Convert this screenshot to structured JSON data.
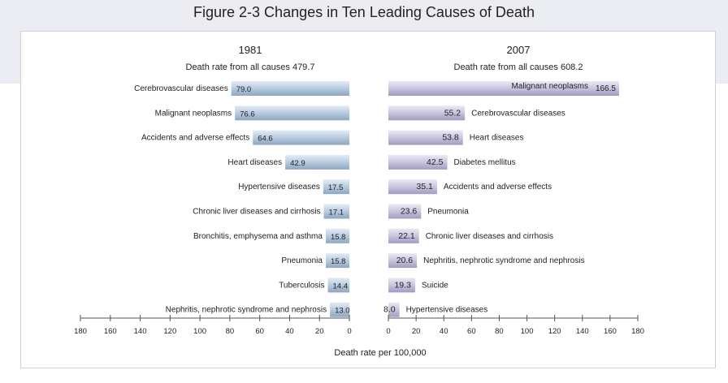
{
  "figure_title": "Figure 2-3  Changes in Ten Leading Causes of Death",
  "x_axis_label": "Death rate per 100,000",
  "colors": {
    "left_bar": "#b9cde0",
    "right_bar": "#c7c5df",
    "band": "#ecedf3"
  },
  "chart_data": [
    {
      "type": "bar",
      "orientation": "horizontal-reversed",
      "title": "1981",
      "subtitle": "Death rate from all causes 479.7",
      "xlabel": "Death rate per 100,000",
      "xlim": [
        0,
        180
      ],
      "ticks": [
        0,
        20,
        40,
        60,
        80,
        100,
        120,
        140,
        160,
        180
      ],
      "categories": [
        "Cerebrovascular diseases",
        "Malignant neoplasms",
        "Accidents and adverse effects",
        "Heart diseases",
        "Hypertensive diseases",
        "Chronic liver diseases and cirrhosis",
        "Bronchitis, emphysema and asthma",
        "Pneumonia",
        "Tuberculosis",
        "Nephritis, nephrotic syndrome and nephrosis"
      ],
      "values": [
        79.0,
        76.6,
        64.6,
        42.9,
        17.5,
        17.1,
        15.8,
        15.8,
        14.4,
        13.0
      ],
      "value_labels": [
        "79.0",
        "76.6",
        "64.6",
        "42.9",
        "17.5",
        "17.1",
        "15.8",
        "15.8",
        "14.4",
        "13.0"
      ]
    },
    {
      "type": "bar",
      "orientation": "horizontal",
      "title": "2007",
      "subtitle": "Death rate from all causes 608.2",
      "xlabel": "Death rate per 100,000",
      "xlim": [
        0,
        180
      ],
      "ticks": [
        0,
        20,
        40,
        60,
        80,
        100,
        120,
        140,
        160,
        180
      ],
      "categories": [
        "Malignant neoplasms",
        "Cerebrovascular diseases",
        "Heart diseases",
        "Diabetes mellitus",
        "Accidents and adverse effects",
        "Pneumonia",
        "Chronic liver diseases and cirrhosis",
        "Nephritis, nephrotic syndrome and nephrosis",
        "Suicide",
        "Hypertensive diseases"
      ],
      "values": [
        166.5,
        55.2,
        53.8,
        42.5,
        35.1,
        23.6,
        22.1,
        20.6,
        19.3,
        8.0
      ],
      "value_labels": [
        "166.5",
        "55.2",
        "53.8",
        "42.5",
        "35.1",
        "23.6",
        "22.1",
        "20.6",
        "19.3",
        "8.0"
      ]
    }
  ]
}
